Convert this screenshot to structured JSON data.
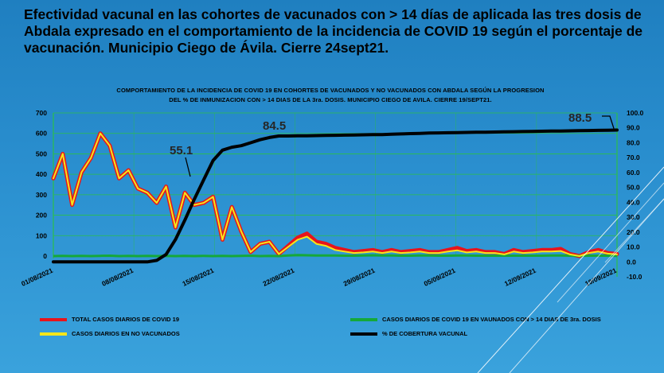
{
  "slide": {
    "title": "Efectividad vacunal en las cohortes de vacunados con > 14 días de aplicada las tres dosis de Abdala expresado en el comportamiento de la incidencia de COVID 19 según el porcentaje de vacunación. Municipio Ciego de Ávila. Cierre 24sept21."
  },
  "chart_data": {
    "type": "line",
    "title_line1": "COMPORTAMIENTO DE LA INCIDENCIA DE COVID 19 EN COHORTES DE VACUNADOS Y NO VACUNADOS CON ABDALA SEGÚN LA PROGRESION",
    "title_line2": "DEL % DE INMUNIZACION CON > 14 DIAS DE LA 3ra. DOSIS. MUNICIPIO CIEGO DE AVILA. CIERRE 19/SEPT21.",
    "x_tick_labels": [
      "01/08/2021",
      "08/08/2021",
      "15/08/2021",
      "22/08/2021",
      "29/08/2021",
      "05/09/2021",
      "12/09/2021",
      "19/09/2021"
    ],
    "y_left": {
      "min": 0,
      "max": 700,
      "ticks": [
        0,
        100,
        200,
        300,
        400,
        500,
        600,
        700
      ]
    },
    "y_right": {
      "min": -10,
      "max": 100,
      "ticks": [
        "-10.0",
        "0.0",
        "10.0",
        "20.0",
        "30.0",
        "40.0",
        "50.0",
        "60.0",
        "70.0",
        "80.0",
        "90.0",
        "100.0"
      ]
    },
    "grid": true,
    "legend_placement": "bottom",
    "series": [
      {
        "name": "TOTAL CASOS DIARIOS DE COVID 19",
        "color": "#e8141b",
        "axis": "left",
        "values": [
          380,
          500,
          250,
          410,
          480,
          600,
          540,
          380,
          420,
          330,
          310,
          260,
          340,
          140,
          310,
          250,
          260,
          290,
          80,
          240,
          120,
          20,
          60,
          70,
          10,
          50,
          90,
          110,
          70,
          60,
          40,
          30,
          20,
          25,
          30,
          20,
          30,
          20,
          25,
          30,
          20,
          20,
          30,
          40,
          25,
          30,
          20,
          20,
          10,
          30,
          20,
          25,
          30,
          30,
          35,
          10,
          0,
          20,
          30,
          15,
          10
        ]
      },
      {
        "name": "CASOS DIARIOS DE COVID 19 EN VAUNADOS CON > 14 DIAS DE 3ra. DOSIS",
        "color": "#15a83a",
        "axis": "left",
        "values": [
          0,
          1,
          0,
          1,
          0,
          1,
          2,
          0,
          1,
          0,
          1,
          0,
          1,
          0,
          1,
          0,
          1,
          0,
          1,
          0,
          1,
          2,
          0,
          1,
          0,
          3,
          5,
          4,
          3,
          3,
          3,
          2,
          2,
          3,
          4,
          3,
          3,
          2,
          2,
          3,
          3,
          2,
          2,
          3,
          3,
          2,
          2,
          2,
          2,
          2,
          2,
          2,
          2,
          3,
          3,
          2,
          1,
          2,
          2,
          2,
          1
        ]
      },
      {
        "name": "CASOS DIARIOS EN NO VACUNADOS",
        "color": "#f5e61a",
        "axis": "left",
        "values": [
          380,
          500,
          250,
          410,
          480,
          600,
          540,
          380,
          420,
          330,
          310,
          260,
          340,
          140,
          310,
          250,
          260,
          290,
          80,
          240,
          120,
          20,
          60,
          70,
          10,
          45,
          80,
          95,
          60,
          50,
          30,
          22,
          15,
          18,
          22,
          15,
          22,
          15,
          18,
          22,
          15,
          15,
          22,
          28,
          18,
          22,
          15,
          15,
          8,
          22,
          15,
          18,
          22,
          22,
          25,
          8,
          0,
          15,
          22,
          12,
          8
        ]
      },
      {
        "name": "% DE COBERTURA VACUNAL",
        "color": "#000000",
        "axis": "right",
        "values": [
          0,
          0,
          0,
          0,
          0,
          0,
          0,
          0,
          0,
          0,
          0,
          1,
          5,
          15,
          28,
          42,
          55.1,
          68,
          75,
          77,
          78,
          80,
          82,
          83.5,
          84.5,
          84.5,
          84.6,
          84.7,
          84.8,
          84.9,
          85.0,
          85.1,
          85.2,
          85.3,
          85.4,
          85.5,
          85.7,
          85.9,
          86.1,
          86.3,
          86.5,
          86.6,
          86.7,
          86.8,
          86.9,
          87.0,
          87.1,
          87.2,
          87.3,
          87.4,
          87.5,
          87.6,
          87.7,
          87.8,
          87.9,
          88.0,
          88.1,
          88.2,
          88.3,
          88.4,
          88.5
        ]
      }
    ],
    "annotations": [
      "55.1",
      "84.5",
      "88.5"
    ]
  },
  "legend": {
    "total": "TOTAL CASOS DIARIOS DE COVID 19",
    "vacunados": "CASOS DIARIOS DE COVID 19 EN VAUNADOS CON > 14 DIAS DE 3ra. DOSIS",
    "no_vacunados": "CASOS DIARIOS EN NO VACUNADOS",
    "cobertura": "% DE COBERTURA VACUNAL"
  }
}
